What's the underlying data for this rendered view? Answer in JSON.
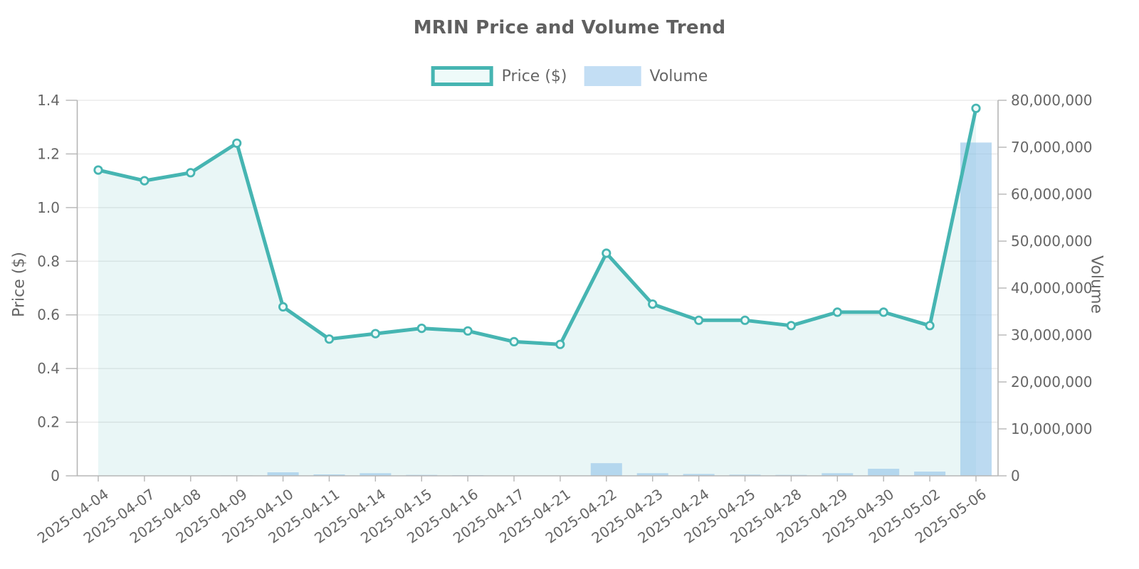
{
  "chart_data": {
    "type": "line",
    "title": "MRIN Price and Volume Trend",
    "xlabel": "",
    "ylabel_left": "Price ($)",
    "ylabel_right": "Volume",
    "legend": [
      "Price ($)",
      "Volume"
    ],
    "legend_position": "top-center",
    "grid": "horizontal",
    "categories": [
      "2025-04-04",
      "2025-04-07",
      "2025-04-08",
      "2025-04-09",
      "2025-04-10",
      "2025-04-11",
      "2025-04-14",
      "2025-04-15",
      "2025-04-16",
      "2025-04-17",
      "2025-04-21",
      "2025-04-22",
      "2025-04-23",
      "2025-04-24",
      "2025-04-25",
      "2025-04-28",
      "2025-04-29",
      "2025-04-30",
      "2025-05-02",
      "2025-05-06"
    ],
    "series": [
      {
        "name": "Price ($)",
        "type": "line",
        "axis": "left",
        "values": [
          1.14,
          1.1,
          1.13,
          1.24,
          0.63,
          0.51,
          0.53,
          0.55,
          0.54,
          0.5,
          0.49,
          0.83,
          0.64,
          0.58,
          0.58,
          0.56,
          0.61,
          0.61,
          0.56,
          1.37
        ]
      },
      {
        "name": "Volume",
        "type": "bar",
        "axis": "right",
        "values": [
          50000,
          60000,
          50000,
          100000,
          750000,
          300000,
          560000,
          200000,
          150000,
          80000,
          80000,
          2700000,
          560000,
          400000,
          250000,
          200000,
          560000,
          1500000,
          900000,
          71000000
        ]
      }
    ],
    "ylim_left": [
      0,
      1.4
    ],
    "ylim_right": [
      0,
      80000000
    ],
    "yticks_left": [
      "0",
      "0.2",
      "0.4",
      "0.6",
      "0.8",
      "1.0",
      "1.2",
      "1.4"
    ],
    "yticks_right": [
      "0",
      "10,000,000",
      "20,000,000",
      "30,000,000",
      "40,000,000",
      "50,000,000",
      "60,000,000",
      "70,000,000",
      "80,000,000"
    ],
    "colors": {
      "price_line": "#46b5b2",
      "price_marker_fill": "#effaf9",
      "price_area_fill": "#e9f6f5",
      "volume_bar": "#93c4e9",
      "volume_swatch": "#c3def4",
      "title_text": "#606060",
      "tick_text": "#666666",
      "gridline": "#e7e7e7",
      "spine": "#b6b6b6"
    }
  }
}
